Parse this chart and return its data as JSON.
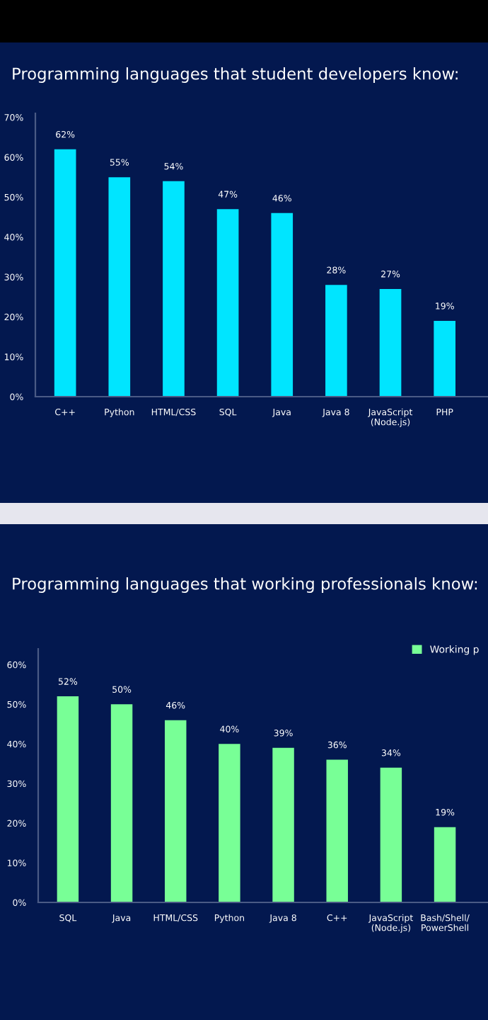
{
  "chart_data": [
    {
      "type": "bar",
      "title": "Programming languages that student developers know:",
      "categories": [
        "C++",
        "Python",
        "HTML/CSS",
        "SQL",
        "Java",
        "Java 8",
        "JavaScript\n(Node.js)",
        "PHP"
      ],
      "series": [
        {
          "color": "#00e5ff",
          "values": [
            62,
            55,
            54,
            47,
            46,
            28,
            27,
            19
          ],
          "value_labels": [
            "62%",
            "55%",
            "54%",
            "47%",
            "46%",
            "28%",
            "27%",
            "19%"
          ]
        }
      ],
      "ylim": [
        0,
        71
      ],
      "yticks": [
        {
          "value": 0,
          "label": "0%"
        },
        {
          "value": 10,
          "label": "10%"
        },
        {
          "value": 20,
          "label": "20%"
        },
        {
          "value": 30,
          "label": "30%"
        },
        {
          "value": 40,
          "label": "40%"
        },
        {
          "value": 50,
          "label": "50%"
        },
        {
          "value": 60,
          "label": "60%"
        },
        {
          "value": 70,
          "label": "70%"
        }
      ],
      "grid": false,
      "legend": false
    },
    {
      "type": "bar",
      "title": "Programming languages that working professionals know:",
      "categories": [
        "SQL",
        "Java",
        "HTML/CSS",
        "Python",
        "Java 8",
        "C++",
        "JavaScript\n(Node.js)",
        "Bash/Shell/\nPowerShell"
      ],
      "series": [
        {
          "name": "Working p",
          "color": "#78ff96",
          "values": [
            52,
            50,
            46,
            40,
            39,
            36,
            34,
            19
          ],
          "value_labels": [
            "52%",
            "50%",
            "46%",
            "40%",
            "39%",
            "36%",
            "34%",
            "19%"
          ]
        }
      ],
      "ylim": [
        0,
        64
      ],
      "yticks": [
        {
          "value": 0,
          "label": "0%"
        },
        {
          "value": 10,
          "label": "10%"
        },
        {
          "value": 20,
          "label": "20%"
        },
        {
          "value": 30,
          "label": "30%"
        },
        {
          "value": 40,
          "label": "40%"
        },
        {
          "value": 50,
          "label": "50%"
        },
        {
          "value": 60,
          "label": "60%"
        }
      ],
      "grid": false,
      "legend": "top right"
    }
  ]
}
